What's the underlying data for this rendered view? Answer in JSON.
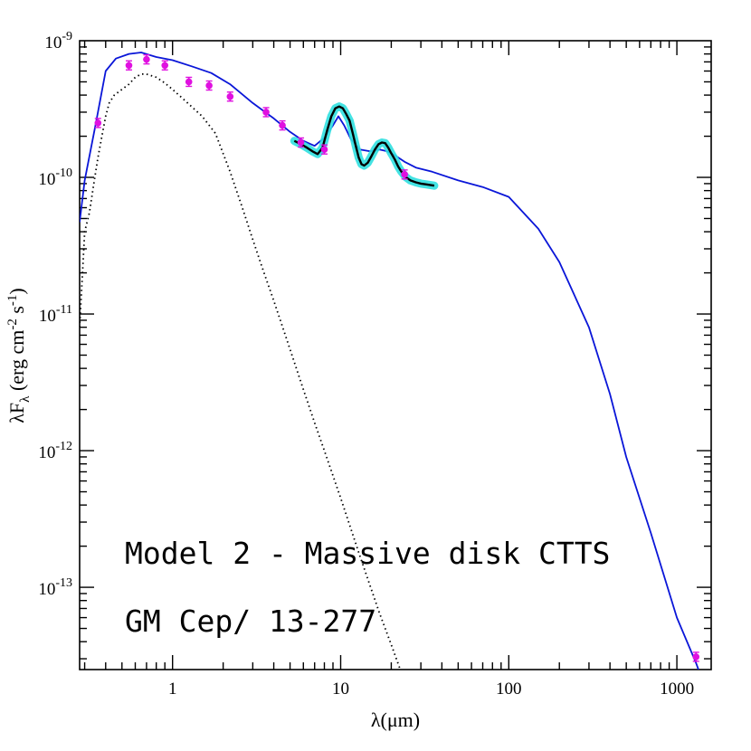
{
  "chart_data": {
    "type": "line",
    "xlabel": "λ(μm)",
    "ylabel": "λF",
    "ylabel_sub": "λ",
    "ylabel_units": " (erg cm",
    "ylabel_exp1": "-2",
    "ylabel_mid": " s",
    "ylabel_exp2": "-1",
    "ylabel_close": ")",
    "x_scale": "log",
    "y_scale": "log",
    "xlim": [
      0.28,
      1600
    ],
    "ylim": [
      2.5e-14,
      1e-09
    ],
    "x_ticks": [
      {
        "value": 1,
        "label": "1"
      },
      {
        "value": 10,
        "label": "10"
      },
      {
        "value": 100,
        "label": "100"
      },
      {
        "value": 1000,
        "label": "1000"
      }
    ],
    "y_ticks": [
      {
        "value": 1e-13,
        "base": "10",
        "exp": "-13"
      },
      {
        "value": 1e-12,
        "base": "10",
        "exp": "-12"
      },
      {
        "value": 1e-11,
        "base": "10",
        "exp": "-11"
      },
      {
        "value": 1e-10,
        "base": "10",
        "exp": "-10"
      },
      {
        "value": 1e-09,
        "base": "10",
        "exp": "-9"
      }
    ],
    "grid": false,
    "legend": "none",
    "annotations": [
      "Model 2 - Massive disk CTTS",
      "GM Cep/ 13-277"
    ],
    "colors": {
      "model": "#0a16d8",
      "photosphere": "#000000",
      "photometry": "#e010e0",
      "spectrum": "#000000",
      "spectrum_error": "#30e0e0"
    },
    "series": [
      {
        "kind": "model-total",
        "x": [
          0.28,
          0.3,
          0.35,
          0.4,
          0.46,
          0.55,
          0.65,
          0.8,
          1.0,
          1.3,
          1.7,
          2.2,
          3.0,
          4.0,
          5.0,
          6.0,
          7.0,
          8.0,
          9.0,
          9.7,
          10.5,
          11.5,
          13.0,
          15.0,
          17.0,
          19.0,
          21.0,
          24.0,
          28.0,
          35.0,
          50.0,
          70.0,
          100.0,
          150.0,
          200.0,
          300.0,
          400.0,
          500.0,
          700.0,
          1000.0,
          1300.0,
          1600.0
        ],
        "y": [
          4.7e-11,
          9.5e-11,
          2.5e-10,
          6e-10,
          7.4e-10,
          8e-10,
          8.2e-10,
          7.6e-10,
          7.2e-10,
          6.5e-10,
          5.8e-10,
          4.8e-10,
          3.5e-10,
          2.7e-10,
          2.15e-10,
          1.85e-10,
          1.7e-10,
          1.95e-10,
          2.4e-10,
          2.8e-10,
          2.4e-10,
          1.9e-10,
          1.6e-10,
          1.55e-10,
          1.6e-10,
          1.55e-10,
          1.45e-10,
          1.3e-10,
          1.18e-10,
          1.1e-10,
          9.5e-11,
          8.5e-11,
          7.2e-11,
          4.2e-11,
          2.4e-11,
          8e-12,
          2.6e-12,
          9e-13,
          2.5e-13,
          6e-14,
          2.8e-14,
          1.4e-14
        ]
      },
      {
        "kind": "photosphere",
        "x": [
          0.28,
          0.3,
          0.32,
          0.34,
          0.36,
          0.38,
          0.4,
          0.42,
          0.45,
          0.5,
          0.55,
          0.6,
          0.65,
          0.7,
          0.8,
          0.9,
          1.0,
          1.2,
          1.5,
          1.8,
          2.2,
          2.6,
          3.0,
          3.5,
          4.0,
          5.0,
          6.0,
          7.0,
          8.0,
          10.0,
          13.0,
          17.0,
          20.0,
          23.5
        ],
        "y": [
          8e-12,
          4e-11,
          5.5e-11,
          9e-11,
          1.4e-10,
          2e-10,
          2.8e-10,
          3.5e-10,
          4e-10,
          4.4e-10,
          4.8e-10,
          5.4e-10,
          5.7e-10,
          5.7e-10,
          5.4e-10,
          4.9e-10,
          4.4e-10,
          3.6e-10,
          2.8e-10,
          2.1e-10,
          1.1e-10,
          6e-11,
          3.5e-11,
          2e-11,
          1.25e-11,
          5.5e-12,
          2.8e-12,
          1.6e-12,
          1e-12,
          4.5e-13,
          1.7e-13,
          6.5e-14,
          3.8e-14,
          2.2e-14
        ]
      },
      {
        "kind": "spectrum",
        "x": [
          5.3,
          5.8,
          6.3,
          6.8,
          7.3,
          7.8,
          8.3,
          8.8,
          9.3,
          9.8,
          10.3,
          10.8,
          11.3,
          11.8,
          12.3,
          12.8,
          13.3,
          13.8,
          14.5,
          15.2,
          16.0,
          16.8,
          17.6,
          18.4,
          19.2,
          20.0,
          21.0,
          22.0,
          23.0,
          24.5,
          26.0,
          28.0,
          30.0,
          32.0,
          34.0,
          36.0
        ],
        "y": [
          1.85e-10,
          1.75e-10,
          1.65e-10,
          1.55e-10,
          1.48e-10,
          1.65e-10,
          2.2e-10,
          2.8e-10,
          3.2e-10,
          3.3e-10,
          3.2e-10,
          2.9e-10,
          2.6e-10,
          2.1e-10,
          1.7e-10,
          1.4e-10,
          1.25e-10,
          1.22e-10,
          1.28e-10,
          1.42e-10,
          1.6e-10,
          1.75e-10,
          1.8e-10,
          1.78e-10,
          1.65e-10,
          1.5e-10,
          1.35e-10,
          1.2e-10,
          1.1e-10,
          1e-10,
          9.5e-11,
          9.2e-11,
          9e-11,
          8.9e-11,
          8.8e-11,
          8.7e-11
        ]
      }
    ],
    "photometry": {
      "x": [
        0.36,
        0.55,
        0.7,
        0.9,
        1.25,
        1.65,
        2.2,
        3.6,
        4.5,
        5.8,
        8.0,
        24.0,
        1300.0
      ],
      "y": [
        2.5e-10,
        6.6e-10,
        7.3e-10,
        6.6e-10,
        5e-10,
        4.7e-10,
        3.9e-10,
        3e-10,
        2.4e-10,
        1.8e-10,
        1.6e-10,
        1.05e-10,
        3.1e-14
      ]
    }
  }
}
